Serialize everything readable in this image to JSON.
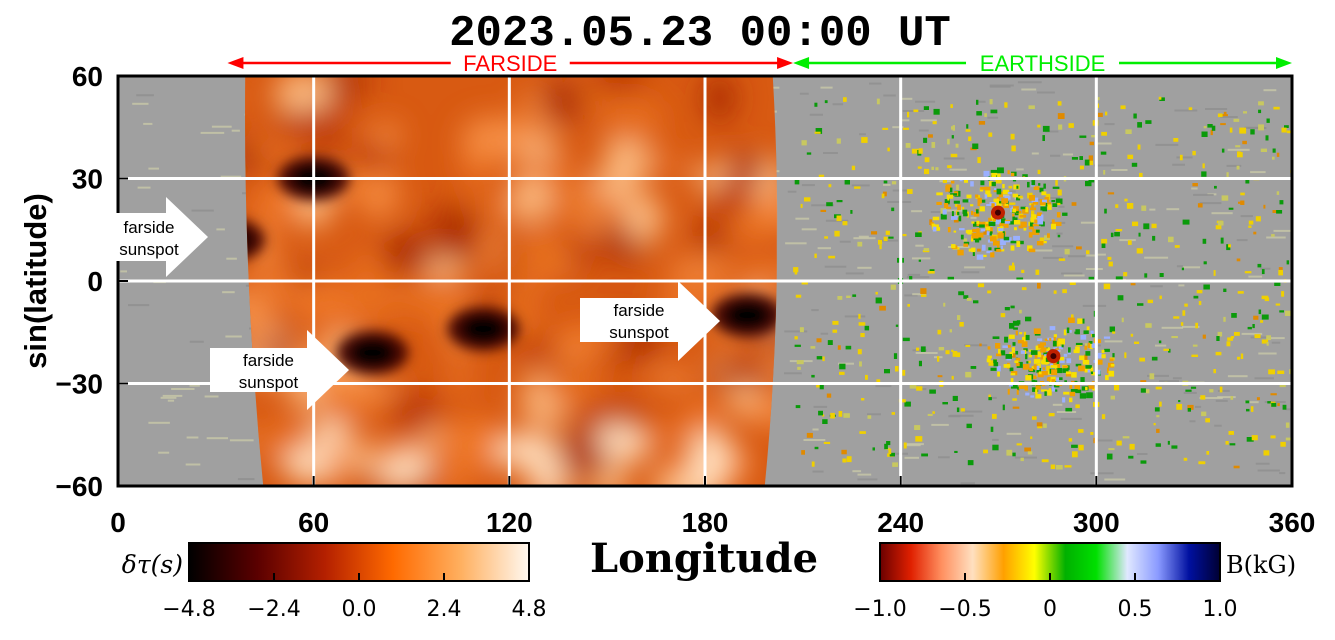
{
  "chart_data": {
    "type": "heatmap",
    "title": "2023.05.23  00:00  UT",
    "xlabel": "Longitude",
    "ylabel": "sin(latitude)",
    "xlim": [
      0,
      360
    ],
    "ylim": [
      -60,
      60
    ],
    "x_ticks": [
      "0",
      "60",
      "120",
      "180",
      "240",
      "300",
      "360"
    ],
    "y_ticks": [
      "60",
      "30",
      "0",
      "−30",
      "−60"
    ],
    "x_tick_values": [
      0,
      60,
      120,
      180,
      240,
      300,
      360
    ],
    "y_tick_values": [
      60,
      30,
      0,
      -30,
      -60
    ],
    "grid": true,
    "grid_color": "#ffffff",
    "regions": [
      {
        "label": "FARSIDE",
        "x_start": 17,
        "x_end": 207,
        "color": "#ff0000"
      },
      {
        "label": "EARTHSIDE",
        "x_start": 207,
        "x_end": 360,
        "color": "#00ee00"
      }
    ],
    "farside_map": {
      "x_start": 20,
      "x_end": 202,
      "data_range": [
        -4.8,
        4.8
      ]
    },
    "annotations": [
      {
        "text": "farside sunspot",
        "x": 28,
        "y": 12
      },
      {
        "text": "farside sunspot",
        "x": 72,
        "y": -22
      },
      {
        "text": "farside sunspot",
        "x": 185,
        "y": -10
      }
    ],
    "spot_centers": [
      {
        "x": 34,
        "y": 12
      },
      {
        "x": 78,
        "y": -21
      },
      {
        "x": 112,
        "y": -14
      },
      {
        "x": 193,
        "y": -10
      },
      {
        "x": 60,
        "y": 30
      }
    ],
    "active_regions_earthside": [
      {
        "x": 268,
        "y": 20
      },
      {
        "x": 285,
        "y": -22
      }
    ],
    "colorbars": [
      {
        "name": "farside",
        "label": "δτ(s)",
        "range": [
          -4.8,
          4.8
        ],
        "ticks": [
          "−4.8",
          "−2.4",
          "0.0",
          "2.4",
          "4.8"
        ],
        "colors": [
          "#000000",
          "#5a0000",
          "#b42000",
          "#ff6a00",
          "#ffb060",
          "#fff8f0"
        ]
      },
      {
        "name": "magnetogram",
        "label": "B(kG)",
        "range": [
          -1.0,
          1.0
        ],
        "ticks": [
          "−1.0",
          "−0.5",
          "0",
          "0.5",
          "1.0"
        ],
        "colors": [
          "#6a0000",
          "#e02000",
          "#ff9060",
          "#ffe0c0",
          "#ffa000",
          "#ffff00",
          "#00b000",
          "#00e000",
          "#e0e8ff",
          "#8a9aff",
          "#0010a0",
          "#000033"
        ]
      }
    ]
  }
}
